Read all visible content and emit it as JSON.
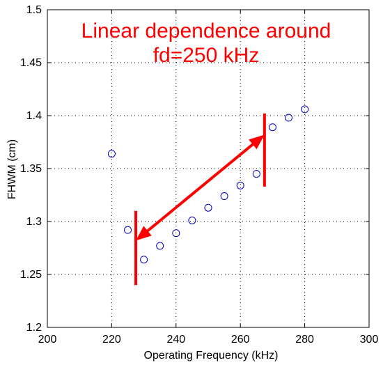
{
  "chart_data": {
    "type": "scatter",
    "title": "",
    "xlabel": "Operating Frequency (kHz)",
    "ylabel": "FHWM (cm)",
    "xlim": [
      200,
      300
    ],
    "ylim": [
      1.2,
      1.5
    ],
    "x_ticks": [
      200,
      220,
      240,
      260,
      280,
      300
    ],
    "y_ticks": [
      1.2,
      1.25,
      1.3,
      1.35,
      1.4,
      1.45,
      1.5
    ],
    "x_tick_labels": [
      "200",
      "220",
      "240",
      "260",
      "280",
      "300"
    ],
    "y_tick_labels": [
      "1.2",
      "1.25",
      "1.3",
      "1.35",
      "1.4",
      "1.45",
      "1.5"
    ],
    "grid": true,
    "marker": "open-circle",
    "marker_color": "#0000cc",
    "series": [
      {
        "x": [
          220,
          225,
          230,
          235,
          240,
          245,
          250,
          255,
          260,
          265,
          270,
          275,
          280
        ],
        "y": [
          1.364,
          1.292,
          1.264,
          1.277,
          1.289,
          1.301,
          1.313,
          1.324,
          1.334,
          1.345,
          1.389,
          1.398,
          1.406
        ]
      }
    ],
    "annotations": {
      "text_lines": [
        "Linear dependence around",
        "fd=250 kHz"
      ],
      "color": "#ff0000",
      "double_arrow": {
        "x1": 227.5,
        "y1": 1.282,
        "x2": 267.5,
        "y2": 1.382
      },
      "bars": [
        {
          "x": 227.5,
          "y_min": 1.24,
          "y_max": 1.31
        },
        {
          "x": 267.5,
          "y_min": 1.333,
          "y_max": 1.402
        }
      ]
    }
  }
}
